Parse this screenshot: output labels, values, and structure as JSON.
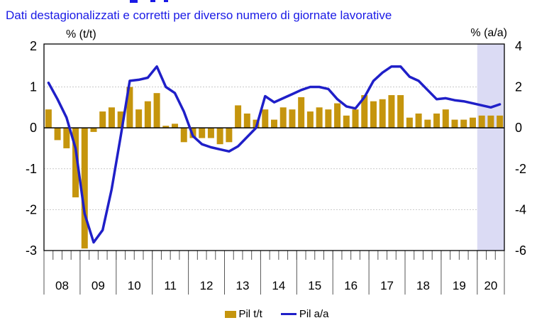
{
  "subtitle": "Dati destagionalizzati e corretti per diverso numero di giornate lavorative",
  "colors": {
    "title": "#1a1ae6",
    "grid": "#c9c9c9",
    "axis": "#000000",
    "tick": "#555555"
  },
  "axes": {
    "left_label": "% (t/t)",
    "right_label": "% (a/a)",
    "left_ticks": [
      2,
      1,
      0,
      -1,
      -2,
      -3
    ],
    "right_ticks": [
      4,
      2,
      0,
      -2,
      -4,
      -6
    ],
    "gridline_values_left": [
      1,
      -1,
      -2
    ]
  },
  "chart_data": {
    "type": "combo_bar_line",
    "x_years": [
      {
        "label": "08",
        "quarters": 4
      },
      {
        "label": "09",
        "quarters": 4
      },
      {
        "label": "10",
        "quarters": 4
      },
      {
        "label": "11",
        "quarters": 4
      },
      {
        "label": "12",
        "quarters": 4
      },
      {
        "label": "13",
        "quarters": 4
      },
      {
        "label": "14",
        "quarters": 4
      },
      {
        "label": "15",
        "quarters": 4
      },
      {
        "label": "16",
        "quarters": 4
      },
      {
        "label": "17",
        "quarters": 4
      },
      {
        "label": "18",
        "quarters": 4
      },
      {
        "label": "19",
        "quarters": 4
      },
      {
        "label": "20",
        "quarters": 3
      }
    ],
    "series": [
      {
        "name": "Pil t/t",
        "type": "bar",
        "axis": "left",
        "color": "#C5950D",
        "values": [
          0.45,
          -0.3,
          -0.5,
          -1.7,
          -2.95,
          -0.1,
          0.4,
          0.5,
          0.4,
          1.0,
          0.45,
          0.65,
          0.85,
          0.05,
          0.1,
          -0.35,
          -0.25,
          -0.25,
          -0.25,
          -0.4,
          -0.35,
          0.55,
          0.35,
          0.2,
          0.45,
          0.2,
          0.5,
          0.45,
          0.75,
          0.4,
          0.5,
          0.45,
          0.6,
          0.3,
          0.45,
          0.8,
          0.65,
          0.7,
          0.8,
          0.8,
          0.25,
          0.35,
          0.2,
          0.35,
          0.45,
          0.2,
          0.2,
          0.25,
          0.3,
          0.3,
          0.3
        ]
      },
      {
        "name": "Pil a/a",
        "type": "line",
        "axis": "right",
        "color": "#1F1FC8",
        "values": [
          2.2,
          1.4,
          0.5,
          -1.0,
          -4.2,
          -5.6,
          -5.0,
          -3.0,
          -0.4,
          2.3,
          2.35,
          2.45,
          3.0,
          2.0,
          1.7,
          0.8,
          -0.4,
          -0.8,
          -0.95,
          -1.05,
          -1.15,
          -0.9,
          -0.45,
          0.0,
          1.55,
          1.25,
          1.45,
          1.65,
          1.85,
          2.0,
          2.0,
          1.9,
          1.4,
          1.05,
          0.95,
          1.5,
          2.3,
          2.7,
          3.0,
          3.0,
          2.5,
          2.3,
          1.85,
          1.4,
          1.45,
          1.35,
          1.3,
          1.2,
          1.1,
          1.0,
          1.15
        ]
      }
    ],
    "left_ylim": [
      -3,
      2.05
    ],
    "right_ylim": [
      -6,
      4.1
    ],
    "grid": true,
    "legend_position": "bottom",
    "highlight_band": {
      "start_quarter_index": 48,
      "end_quarter_index": 51,
      "color": "#DBDBF4"
    }
  },
  "legend": [
    {
      "label": "Pil t/t",
      "swatch": "square"
    },
    {
      "label": "Pil a/a",
      "swatch": "line"
    }
  ]
}
